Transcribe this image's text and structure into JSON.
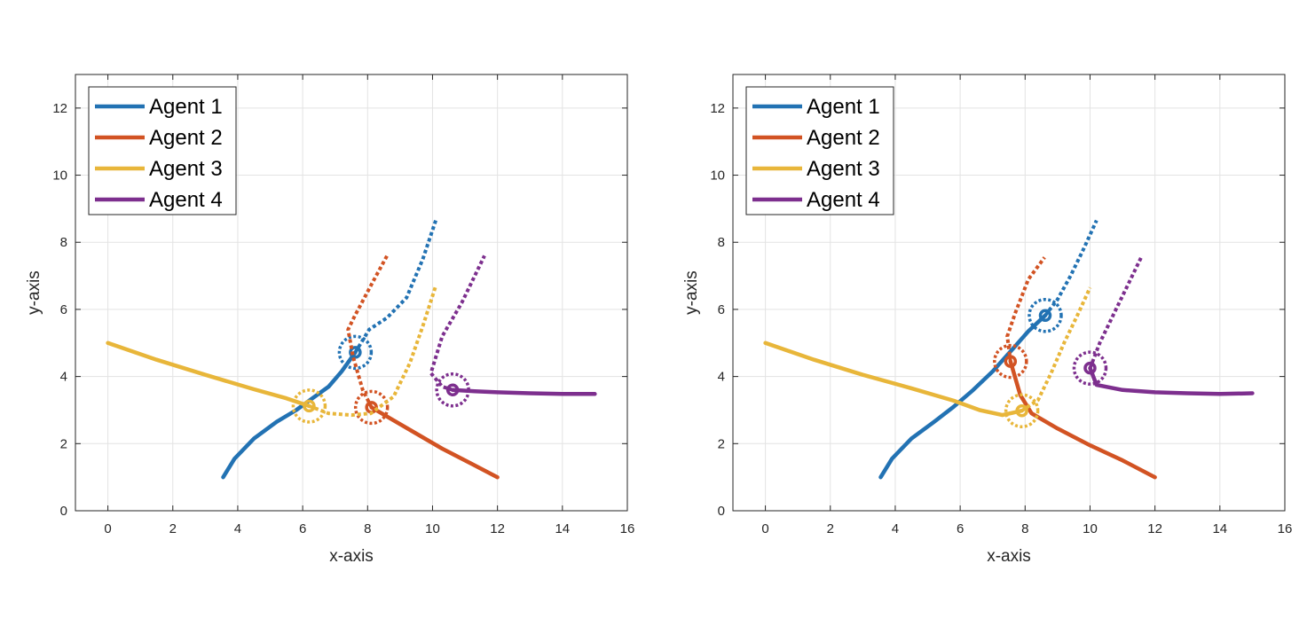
{
  "colors": {
    "agent1": "#2272B3",
    "agent2": "#D25323",
    "agent3": "#E8B63A",
    "agent4": "#7D2F8E",
    "grid": "#E3E3E3",
    "axis": "#262626"
  },
  "chart_data": [
    {
      "type": "line",
      "xlabel": "x-axis",
      "ylabel": "y-axis",
      "xlim": [
        -1,
        16
      ],
      "ylim": [
        0,
        13
      ],
      "xticks": [
        0,
        2,
        4,
        6,
        8,
        10,
        12,
        14,
        16
      ],
      "yticks": [
        0,
        2,
        4,
        6,
        8,
        10,
        12
      ],
      "grid": true,
      "legend": "top-left",
      "series": [
        {
          "name": "Agent 1",
          "color": "#2272B3",
          "past": [
            [
              3.55,
              1.0
            ],
            [
              3.9,
              1.55
            ],
            [
              4.5,
              2.15
            ],
            [
              5.2,
              2.65
            ],
            [
              5.8,
              3.0
            ],
            [
              6.3,
              3.35
            ],
            [
              6.8,
              3.7
            ],
            [
              7.2,
              4.15
            ],
            [
              7.62,
              4.72
            ]
          ],
          "planned": [
            [
              7.62,
              4.72
            ],
            [
              8.05,
              5.4
            ],
            [
              8.6,
              5.75
            ],
            [
              9.2,
              6.35
            ],
            [
              9.7,
              7.5
            ],
            [
              10.1,
              8.65
            ]
          ],
          "position": [
            7.62,
            4.72
          ]
        },
        {
          "name": "Agent 2",
          "color": "#D25323",
          "past": [
            [
              12.0,
              1.0
            ],
            [
              11.2,
              1.4
            ],
            [
              10.3,
              1.85
            ],
            [
              9.5,
              2.3
            ],
            [
              8.7,
              2.75
            ],
            [
              8.12,
              3.08
            ]
          ],
          "planned": [
            [
              8.12,
              3.08
            ],
            [
              7.85,
              3.6
            ],
            [
              7.55,
              4.6
            ],
            [
              7.4,
              5.4
            ],
            [
              7.6,
              5.8
            ],
            [
              8.15,
              6.8
            ],
            [
              8.6,
              7.6
            ]
          ],
          "position": [
            8.12,
            3.08
          ]
        },
        {
          "name": "Agent 3",
          "color": "#E8B63A",
          "past": [
            [
              0.0,
              5.0
            ],
            [
              1.5,
              4.5
            ],
            [
              3.0,
              4.05
            ],
            [
              4.5,
              3.62
            ],
            [
              5.5,
              3.35
            ],
            [
              6.2,
              3.12
            ]
          ],
          "planned": [
            [
              6.2,
              3.12
            ],
            [
              6.8,
              2.9
            ],
            [
              7.5,
              2.85
            ],
            [
              8.1,
              2.9
            ],
            [
              8.8,
              3.4
            ],
            [
              9.3,
              4.4
            ],
            [
              9.7,
              5.5
            ],
            [
              10.1,
              6.7
            ]
          ],
          "position": [
            6.2,
            3.12
          ]
        },
        {
          "name": "Agent 4",
          "color": "#7D2F8E",
          "past": [
            [
              15.0,
              3.48
            ],
            [
              14.0,
              3.48
            ],
            [
              13.0,
              3.5
            ],
            [
              12.0,
              3.53
            ],
            [
              11.3,
              3.56
            ],
            [
              10.62,
              3.6
            ]
          ],
          "planned": [
            [
              10.62,
              3.6
            ],
            [
              10.3,
              3.7
            ],
            [
              9.95,
              4.1
            ],
            [
              10.3,
              5.2
            ],
            [
              10.9,
              6.2
            ],
            [
              11.6,
              7.6
            ]
          ],
          "position": [
            10.62,
            3.6
          ]
        }
      ]
    },
    {
      "type": "line",
      "xlabel": "x-axis",
      "ylabel": "y-axis",
      "xlim": [
        -1,
        16
      ],
      "ylim": [
        0,
        13
      ],
      "xticks": [
        0,
        2,
        4,
        6,
        8,
        10,
        12,
        14,
        16
      ],
      "yticks": [
        0,
        2,
        4,
        6,
        8,
        10,
        12
      ],
      "grid": true,
      "legend": "top-left",
      "series": [
        {
          "name": "Agent 1",
          "color": "#2272B3",
          "past": [
            [
              3.55,
              1.0
            ],
            [
              3.9,
              1.55
            ],
            [
              4.5,
              2.15
            ],
            [
              5.2,
              2.65
            ],
            [
              5.8,
              3.1
            ],
            [
              6.4,
              3.6
            ],
            [
              7.0,
              4.15
            ],
            [
              7.6,
              4.8
            ],
            [
              8.1,
              5.35
            ],
            [
              8.62,
              5.82
            ]
          ],
          "planned": [
            [
              8.62,
              5.82
            ],
            [
              9.0,
              6.3
            ],
            [
              9.4,
              7.0
            ],
            [
              9.8,
              7.8
            ],
            [
              10.2,
              8.65
            ]
          ],
          "position": [
            8.62,
            5.82
          ]
        },
        {
          "name": "Agent 2",
          "color": "#D25323",
          "past": [
            [
              12.0,
              1.0
            ],
            [
              11.0,
              1.5
            ],
            [
              10.0,
              1.95
            ],
            [
              9.0,
              2.45
            ],
            [
              8.2,
              2.9
            ],
            [
              7.85,
              3.45
            ],
            [
              7.55,
              4.45
            ]
          ],
          "planned": [
            [
              7.55,
              4.45
            ],
            [
              7.45,
              5.2
            ],
            [
              7.7,
              5.9
            ],
            [
              8.1,
              6.9
            ],
            [
              8.6,
              7.55
            ]
          ],
          "position": [
            7.55,
            4.45
          ]
        },
        {
          "name": "Agent 3",
          "color": "#E8B63A",
          "past": [
            [
              0.0,
              5.0
            ],
            [
              1.5,
              4.5
            ],
            [
              3.0,
              4.05
            ],
            [
              4.5,
              3.65
            ],
            [
              5.8,
              3.28
            ],
            [
              6.6,
              3.0
            ],
            [
              7.3,
              2.85
            ],
            [
              7.9,
              2.98
            ]
          ],
          "planned": [
            [
              7.9,
              2.98
            ],
            [
              8.4,
              3.3
            ],
            [
              8.8,
              4.1
            ],
            [
              9.2,
              5.0
            ],
            [
              9.6,
              5.8
            ],
            [
              10.0,
              6.65
            ]
          ],
          "position": [
            7.9,
            2.98
          ]
        },
        {
          "name": "Agent 4",
          "color": "#7D2F8E",
          "past": [
            [
              15.0,
              3.5
            ],
            [
              14.0,
              3.48
            ],
            [
              13.0,
              3.5
            ],
            [
              12.0,
              3.53
            ],
            [
              11.0,
              3.6
            ],
            [
              10.2,
              3.75
            ],
            [
              10.0,
              4.25
            ]
          ],
          "planned": [
            [
              10.0,
              4.25
            ],
            [
              10.3,
              5.0
            ],
            [
              10.8,
              6.0
            ],
            [
              11.2,
              6.8
            ],
            [
              11.6,
              7.6
            ]
          ],
          "position": [
            10.0,
            4.25
          ]
        }
      ]
    }
  ]
}
